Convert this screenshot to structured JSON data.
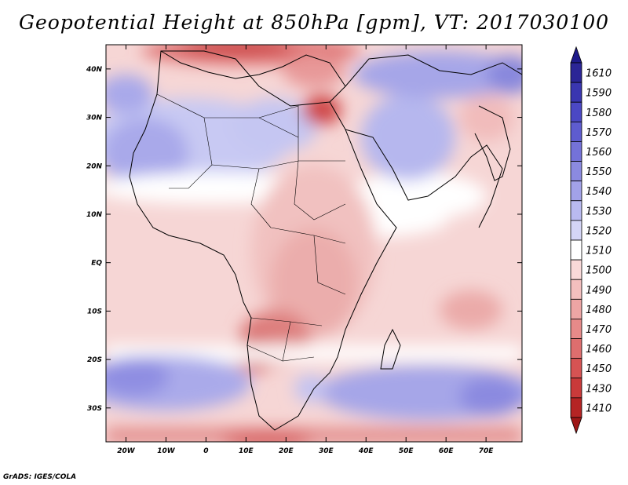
{
  "title": "Geopotential Height at 850hPa [gpm], VT: 2017030100",
  "credit": "GrADS: IGES/COLA",
  "map": {
    "region": "Africa and surrounding oceans",
    "lon_range": [
      -25,
      79
    ],
    "lat_range": [
      -37,
      45
    ],
    "lon_ticks": [
      {
        "value": -20,
        "label": "20W"
      },
      {
        "value": -10,
        "label": "10W"
      },
      {
        "value": 0,
        "label": "0"
      },
      {
        "value": 10,
        "label": "10E"
      },
      {
        "value": 20,
        "label": "20E"
      },
      {
        "value": 30,
        "label": "30E"
      },
      {
        "value": 40,
        "label": "40E"
      },
      {
        "value": 50,
        "label": "50E"
      },
      {
        "value": 60,
        "label": "60E"
      },
      {
        "value": 70,
        "label": "70E"
      }
    ],
    "lat_ticks": [
      {
        "value": 40,
        "label": "40N"
      },
      {
        "value": 30,
        "label": "30N"
      },
      {
        "value": 20,
        "label": "20N"
      },
      {
        "value": 10,
        "label": "10N"
      },
      {
        "value": 0,
        "label": "EQ"
      },
      {
        "value": -10,
        "label": "10S"
      },
      {
        "value": -20,
        "label": "20S"
      },
      {
        "value": -30,
        "label": "30S"
      }
    ]
  },
  "colorbar": {
    "levels": [
      {
        "label": "1610",
        "color": "#2b2596"
      },
      {
        "label": "1590",
        "color": "#3a36b0"
      },
      {
        "label": "1580",
        "color": "#4b48c4"
      },
      {
        "label": "1570",
        "color": "#5e5ccf"
      },
      {
        "label": "1560",
        "color": "#7472d8"
      },
      {
        "label": "1550",
        "color": "#8b8ae0"
      },
      {
        "label": "1540",
        "color": "#a2a2e8"
      },
      {
        "label": "1530",
        "color": "#b9baf0"
      },
      {
        "label": "1520",
        "color": "#d4d5f6"
      },
      {
        "label": "1510",
        "color": "#ffffff"
      },
      {
        "label": "1500",
        "color": "#f9d9d8"
      },
      {
        "label": "1490",
        "color": "#f3bfbe"
      },
      {
        "label": "1480",
        "color": "#eda5a4"
      },
      {
        "label": "1470",
        "color": "#e68a89"
      },
      {
        "label": "1460",
        "color": "#de6e6e"
      },
      {
        "label": "1450",
        "color": "#d65353"
      },
      {
        "label": "1430",
        "color": "#c93a3a"
      },
      {
        "label": "1410",
        "color": "#b52424"
      }
    ],
    "top_arrow_color": "#1e1a8a",
    "bottom_arrow_color": "#9e1717"
  },
  "field_features": [
    {
      "name": "mediterranean-low",
      "lon": 20,
      "lat": 41,
      "level": "1450"
    },
    {
      "name": "levant-low",
      "lon": 31,
      "lat": 31,
      "level": "1460"
    },
    {
      "name": "iran-high",
      "lon": 52,
      "lat": 36,
      "level": "1560"
    },
    {
      "name": "tibet-edge-high",
      "lon": 77,
      "lat": 38,
      "level": "1570"
    },
    {
      "name": "sahara-high",
      "lon": -5,
      "lat": 22,
      "level": "1540"
    },
    {
      "name": "arabia-high",
      "lon": 48,
      "lat": 22,
      "level": "1530"
    },
    {
      "name": "kalahari-low",
      "lon": 21,
      "lat": -17,
      "level": "1470"
    },
    {
      "name": "indian-ocean-low",
      "lon": 69,
      "lat": -12,
      "level": "1480"
    },
    {
      "name": "south-atlantic-high",
      "lon": -10,
      "lat": -24,
      "level": "1550"
    },
    {
      "name": "south-indian-high",
      "lon": 60,
      "lat": -27,
      "level": "1560"
    },
    {
      "name": "southern-low",
      "lon": 25,
      "lat": -36,
      "level": "1470"
    }
  ]
}
